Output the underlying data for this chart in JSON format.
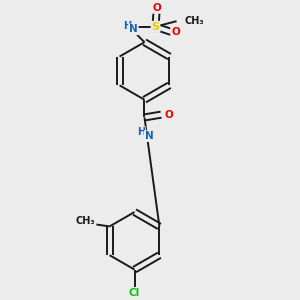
{
  "background_color": "#ececec",
  "bond_color": "#1a1a1a",
  "atom_colors": {
    "N": "#1464b4",
    "O": "#e80000",
    "S": "#e8c800",
    "Cl": "#00c800",
    "C": "#1a1a1a",
    "H": "#1464b4"
  },
  "fig_w": 3.0,
  "fig_h": 3.0,
  "dpi": 100
}
